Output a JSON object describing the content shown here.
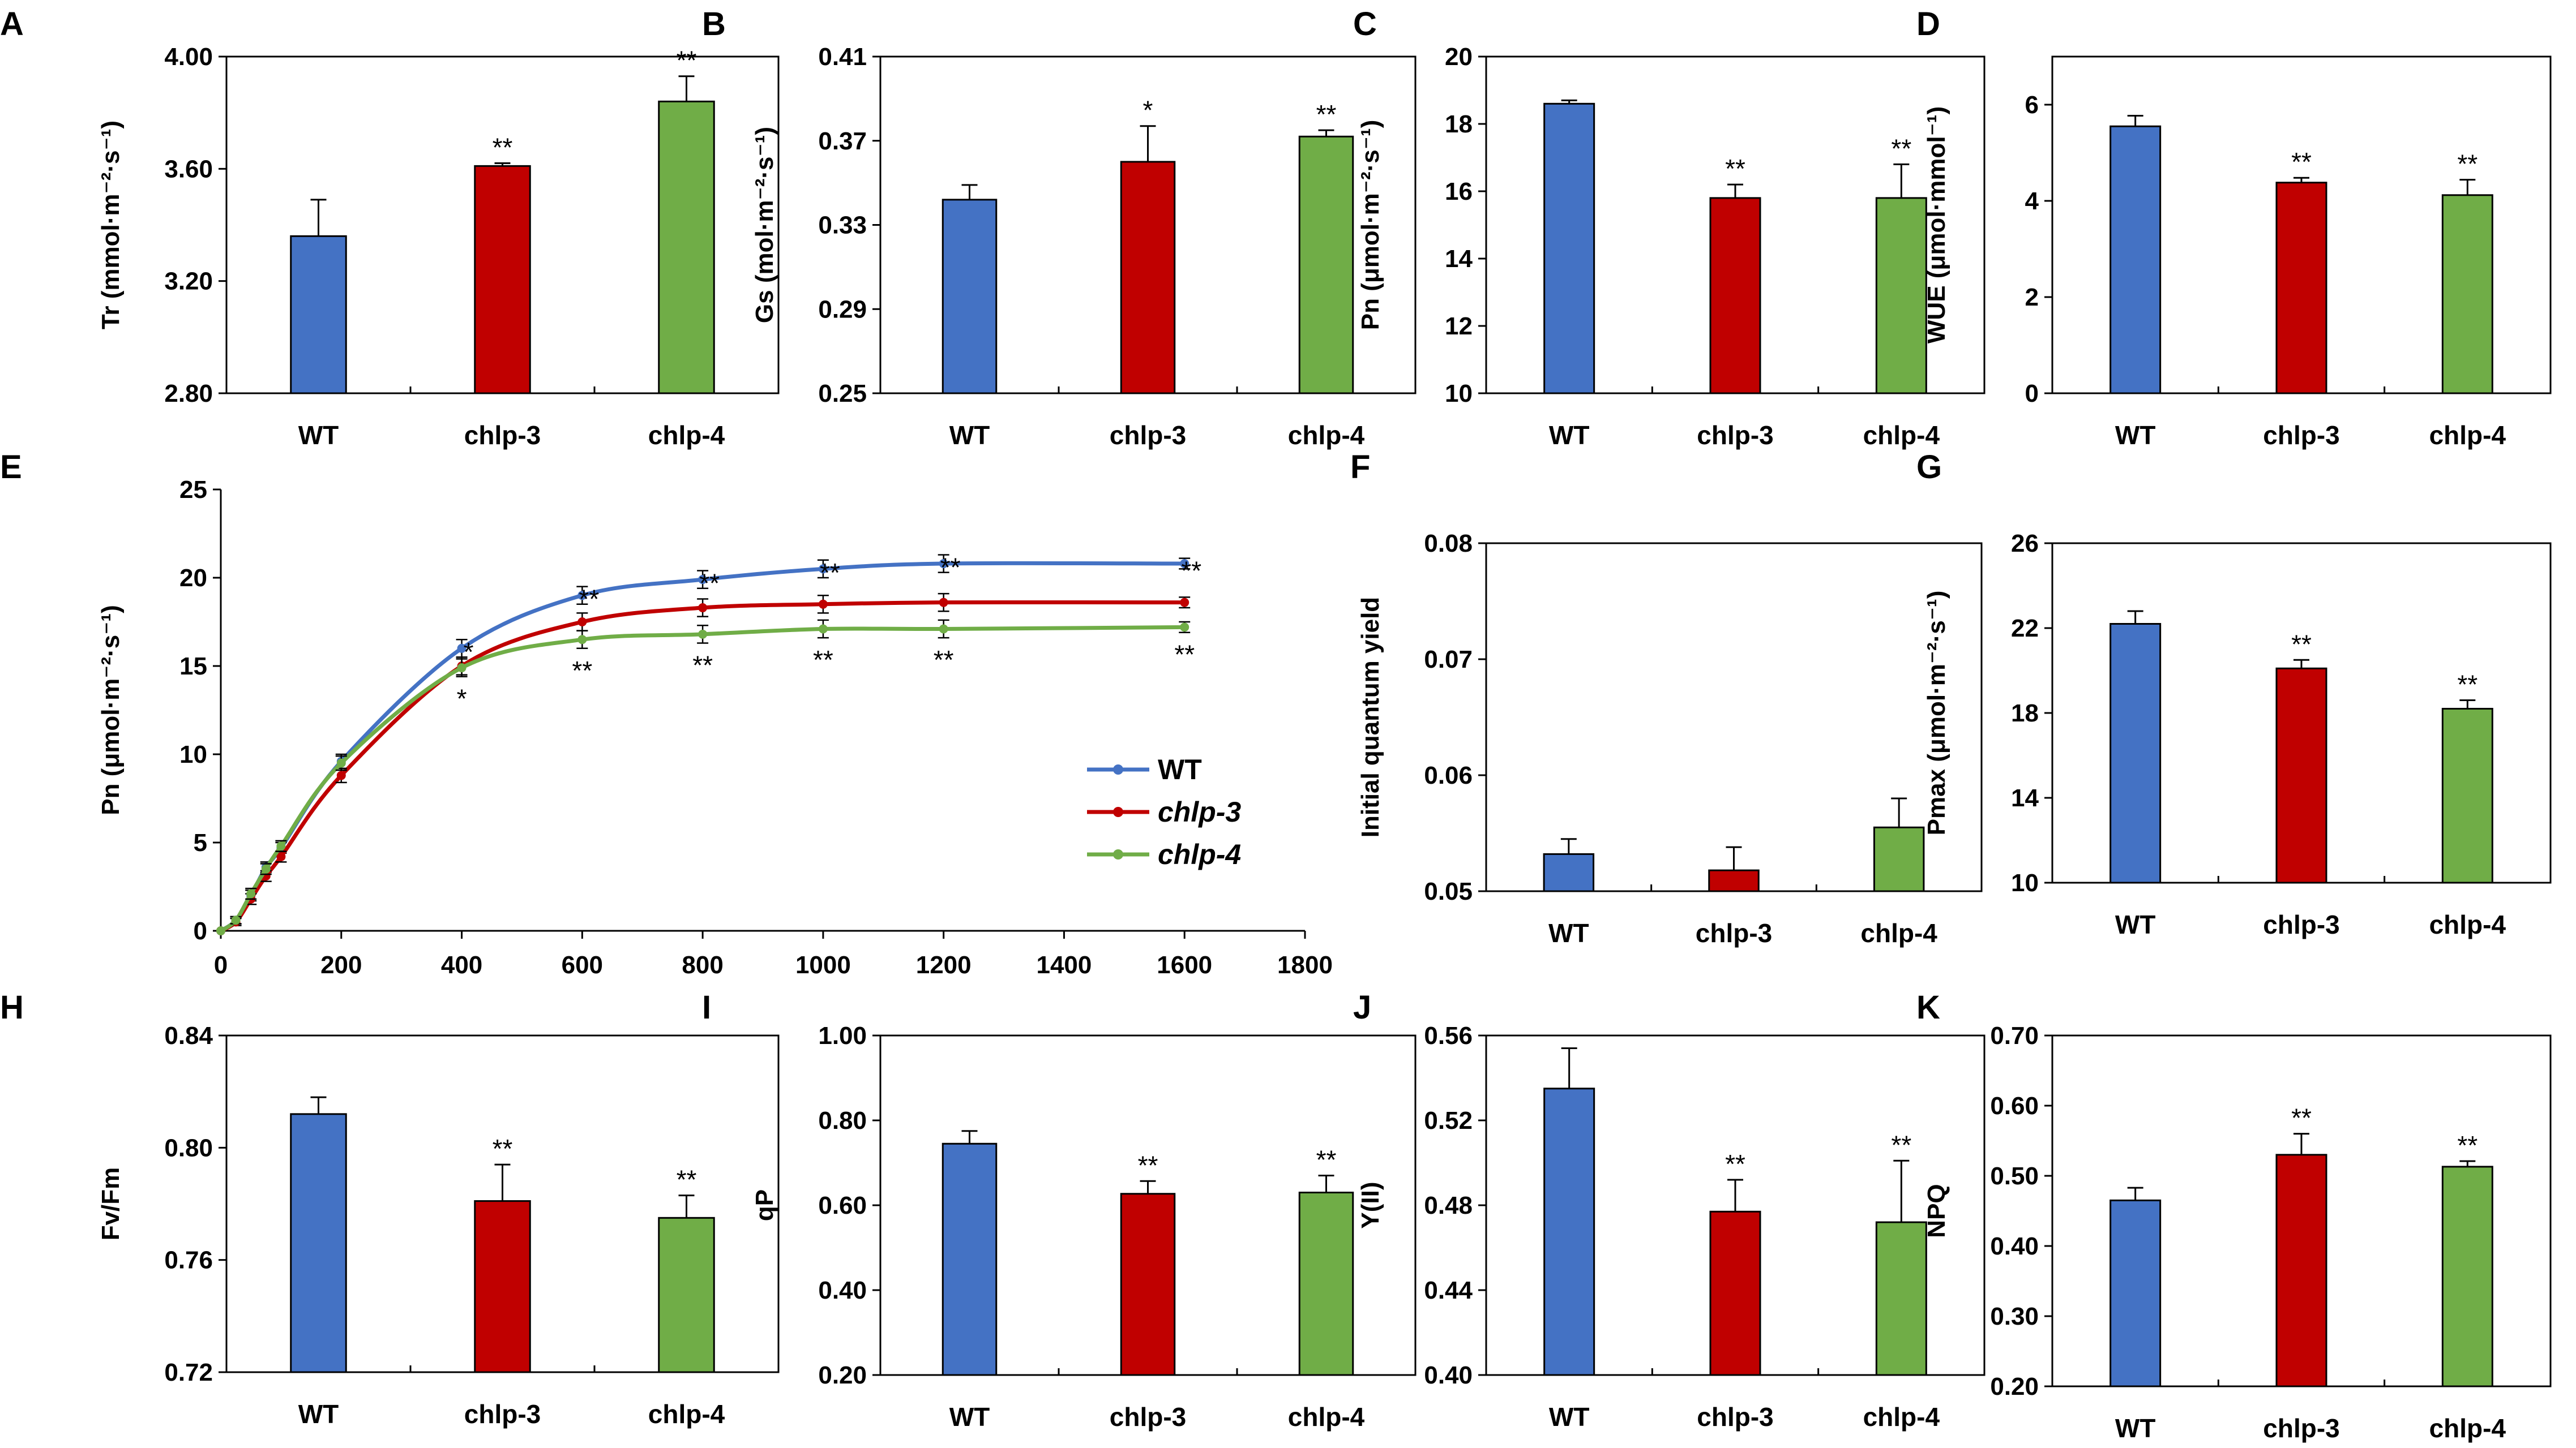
{
  "colors": {
    "WT": "#4472c4",
    "chlp-3": "#c00000",
    "chlp-4": "#70ad47"
  },
  "categories": [
    "WT",
    "chlp-3",
    "chlp-4"
  ],
  "chart_data": [
    {
      "id": "A",
      "type": "bar",
      "ylabel": "Tr (mmol·m⁻²·s⁻¹)",
      "ylim": [
        2.8,
        4.0
      ],
      "ticks": [
        "2.80",
        "3.20",
        "3.60",
        "4.00"
      ],
      "values": [
        3.36,
        3.61,
        3.84
      ],
      "errors": [
        0.13,
        0.01,
        0.09
      ],
      "sig": [
        "",
        "**",
        "**"
      ]
    },
    {
      "id": "B",
      "type": "bar",
      "ylabel": "Gs (mol·m⁻²·s⁻¹)",
      "ylim": [
        0.25,
        0.41
      ],
      "ticks": [
        "0.25",
        "0.29",
        "0.33",
        "0.37",
        "0.41"
      ],
      "values": [
        0.342,
        0.36,
        0.372
      ],
      "errors": [
        0.007,
        0.017,
        0.003
      ],
      "sig": [
        "",
        "*",
        "**"
      ]
    },
    {
      "id": "C",
      "type": "bar",
      "ylabel": "Pn (μmol·m⁻²·s⁻¹)",
      "ylim": [
        10,
        20
      ],
      "ticks": [
        "10",
        "12",
        "14",
        "16",
        "18",
        "20"
      ],
      "values": [
        18.6,
        15.8,
        15.8
      ],
      "errors": [
        0.1,
        0.4,
        1.0
      ],
      "sig": [
        "",
        "**",
        "**"
      ]
    },
    {
      "id": "D",
      "type": "bar",
      "ylabel": "WUE (μmol·mmol⁻¹)",
      "ylim": [
        0,
        7
      ],
      "ticks": [
        "0",
        "2",
        "4",
        "6"
      ],
      "values": [
        5.55,
        4.38,
        4.12
      ],
      "errors": [
        0.22,
        0.1,
        0.32
      ],
      "sig": [
        "",
        "**",
        "**"
      ]
    },
    {
      "id": "E",
      "type": "line",
      "ylabel": "Pn (μmol·m⁻²·s⁻¹)",
      "xlim": [
        0,
        1800
      ],
      "ylim": [
        0,
        25
      ],
      "xticks": [
        "0",
        "200",
        "400",
        "600",
        "800",
        "1000",
        "1200",
        "1400",
        "1600",
        "1800"
      ],
      "yticks": [
        "0",
        "5",
        "10",
        "15",
        "20",
        "25"
      ],
      "x": [
        0,
        25,
        50,
        75,
        100,
        200,
        400,
        600,
        800,
        1000,
        1200,
        1600
      ],
      "series": [
        {
          "name": "WT",
          "values": [
            0,
            0.6,
            2.0,
            3.6,
            4.7,
            9.6,
            16.0,
            19.0,
            19.9,
            20.5,
            20.8,
            20.8
          ]
        },
        {
          "name": "chlp-3",
          "values": [
            0,
            0.5,
            1.8,
            3.1,
            4.2,
            8.8,
            15.0,
            17.5,
            18.3,
            18.5,
            18.6,
            18.6
          ]
        },
        {
          "name": "chlp-4",
          "values": [
            0,
            0.6,
            2.1,
            3.5,
            4.8,
            9.5,
            14.9,
            16.5,
            16.8,
            17.1,
            17.1,
            17.2
          ]
        }
      ],
      "errors": [
        0,
        0.2,
        0.3,
        0.3,
        0.3,
        0.4,
        0.5,
        0.5,
        0.5,
        0.5,
        0.5,
        0.3
      ],
      "sig_chlp3": [
        "",
        "",
        "",
        "",
        "",
        "",
        "*",
        "**",
        "**",
        "**",
        "**",
        "**"
      ],
      "sig_chlp4": [
        "",
        "",
        "",
        "",
        "",
        "",
        "*",
        "**",
        "**",
        "**",
        "**",
        "**"
      ]
    },
    {
      "id": "F",
      "type": "bar",
      "ylabel": "Initial quantum yield",
      "ylim": [
        0.05,
        0.08
      ],
      "ticks": [
        "0.05",
        "0.06",
        "0.07",
        "0.08"
      ],
      "values": [
        0.0532,
        0.0518,
        0.0555
      ],
      "errors": [
        0.0013,
        0.002,
        0.0025
      ],
      "sig": [
        "",
        "",
        ""
      ]
    },
    {
      "id": "G",
      "type": "bar",
      "ylabel": "Pmax (μmol·m⁻²·s⁻¹)",
      "ylim": [
        10,
        26
      ],
      "ticks": [
        "10",
        "14",
        "18",
        "22",
        "26"
      ],
      "values": [
        22.2,
        20.1,
        18.2
      ],
      "errors": [
        0.6,
        0.4,
        0.4
      ],
      "sig": [
        "",
        "**",
        "**"
      ]
    },
    {
      "id": "H",
      "type": "bar",
      "ylabel": "Fv/Fm",
      "ylim": [
        0.72,
        0.84
      ],
      "ticks": [
        "0.72",
        "0.76",
        "0.80",
        "0.84"
      ],
      "values": [
        0.812,
        0.781,
        0.775
      ],
      "errors": [
        0.006,
        0.013,
        0.008
      ],
      "sig": [
        "",
        "**",
        "**"
      ]
    },
    {
      "id": "I",
      "type": "bar",
      "ylabel": "qP",
      "ylim": [
        0.2,
        1.0
      ],
      "ticks": [
        "0.20",
        "0.40",
        "0.60",
        "0.80",
        "1.00"
      ],
      "values": [
        0.745,
        0.627,
        0.63
      ],
      "errors": [
        0.03,
        0.03,
        0.04
      ],
      "sig": [
        "",
        "**",
        "**"
      ]
    },
    {
      "id": "J",
      "type": "bar",
      "ylabel": "Y(II)",
      "ylim": [
        0.4,
        0.56
      ],
      "ticks": [
        "0.40",
        "0.44",
        "0.48",
        "0.52",
        "0.56"
      ],
      "values": [
        0.535,
        0.477,
        0.472
      ],
      "errors": [
        0.019,
        0.015,
        0.029
      ],
      "sig": [
        "",
        "**",
        "**"
      ]
    },
    {
      "id": "K",
      "type": "bar",
      "ylabel": "NPQ",
      "ylim": [
        0.2,
        0.7
      ],
      "ticks": [
        "0.20",
        "0.30",
        "0.40",
        "0.50",
        "0.60",
        "0.70"
      ],
      "values": [
        0.465,
        0.53,
        0.513
      ],
      "errors": [
        0.018,
        0.03,
        0.008
      ],
      "sig": [
        "",
        "**",
        "**"
      ]
    }
  ]
}
